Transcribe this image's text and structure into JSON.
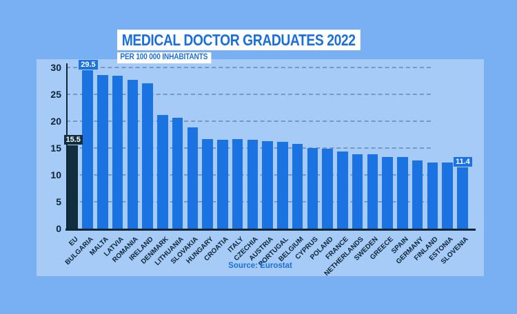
{
  "header": {
    "title": "MEDICAL DOCTOR GRADUATES 2022",
    "subtitle": "PER 100 000 INHABITANTS"
  },
  "footer": {
    "source": "Source: Eurostat"
  },
  "colors": {
    "background": "#79b0f3",
    "card_background": "#a6cbf7",
    "bar": "#1b73e2",
    "highlight_bar": "#122e3e",
    "title_blue": "#1a6fd9",
    "dark_text": "#0e2536",
    "label_text": "#ffffff"
  },
  "chart_data": {
    "type": "bar",
    "title": "MEDICAL DOCTOR GRADUATES 2022",
    "subtitle": "PER 100 000 INHABITANTS",
    "source": "Source: Eurostat",
    "categories": [
      "EU",
      "BULGARIA",
      "MALTA",
      "LATVIA",
      "ROMANIA",
      "IRELAND",
      "DENMARK",
      "LITHUANIA",
      "SLOVAKIA",
      "HUNGARY",
      "CROATIA",
      "ITALY",
      "CZECHIA",
      "AUSTRIA",
      "PORTUGAL",
      "BELGIUM",
      "CYPRUS",
      "POLAND",
      "FRANCE",
      "NETHERLANDS",
      "SWEDEN",
      "GREECE",
      "SPAIN",
      "GERMANY",
      "FINLAND",
      "ESTONIA",
      "SLOVENIA"
    ],
    "values": [
      15.5,
      29.5,
      28.6,
      28.5,
      27.7,
      27.1,
      21.1,
      20.6,
      18.9,
      16.7,
      16.6,
      16.7,
      16.6,
      16.3,
      16.1,
      15.8,
      15.0,
      14.9,
      14.4,
      13.9,
      13.8,
      13.3,
      13.3,
      12.7,
      12.3,
      12.3,
      11.4
    ],
    "highlight_index": 0,
    "annotations": [
      {
        "index": 0,
        "text": "15.5"
      },
      {
        "index": 1,
        "text": "29.5"
      },
      {
        "index": 26,
        "text": "11.4"
      }
    ],
    "yticks": [
      0,
      5,
      10,
      15,
      20,
      25,
      30
    ],
    "ylim": [
      0,
      30.5
    ],
    "grid": "horizontal-dashed",
    "legend": "none"
  }
}
